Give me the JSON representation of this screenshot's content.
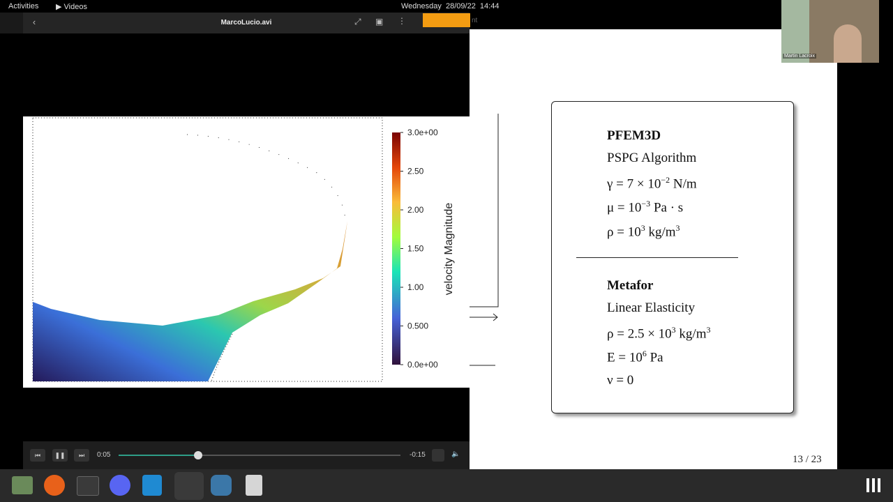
{
  "top_bar": {
    "activities": "Activities",
    "app": "Videos",
    "clock": "Wednesday  28/09/22  14:44"
  },
  "video_window": {
    "title": "MarcoLucio.avi",
    "colorbar": {
      "label": "velocity Magnitude",
      "ticks": [
        "3.0e+00",
        "2.50",
        "2.00",
        "1.50",
        "1.00",
        "0.500",
        "0.0e+00"
      ]
    },
    "elapsed": "0:05",
    "remaining": "-0:15"
  },
  "background_window_title": "nt",
  "slide": {
    "sections": [
      {
        "title": "PFEM3D",
        "lines": [
          [
            {
              "text": "PSPG Algorithm"
            }
          ],
          [
            {
              "text": "γ = 7 × 10"
            },
            {
              "sup": "−2"
            },
            {
              "text": " N/m"
            }
          ],
          [
            {
              "text": "μ = 10"
            },
            {
              "sup": "−3"
            },
            {
              "text": " Pa · s"
            }
          ],
          [
            {
              "text": "ρ = 10"
            },
            {
              "sup": "3"
            },
            {
              "text": " kg/m"
            },
            {
              "sup": "3"
            }
          ]
        ]
      },
      {
        "title": "Metafor",
        "lines": [
          [
            {
              "text": "Linear Elasticity"
            }
          ],
          [
            {
              "text": "ρ = 2.5 × 10"
            },
            {
              "sup": "3"
            },
            {
              "text": " kg/m"
            },
            {
              "sup": "3"
            }
          ],
          [
            {
              "text": "E = 10"
            },
            {
              "sup": "6"
            },
            {
              "text": " Pa"
            }
          ],
          [
            {
              "text": "ν = 0"
            }
          ]
        ]
      }
    ],
    "page": "13 / 23"
  },
  "webcam": {
    "name": "Martin Lacroix"
  }
}
